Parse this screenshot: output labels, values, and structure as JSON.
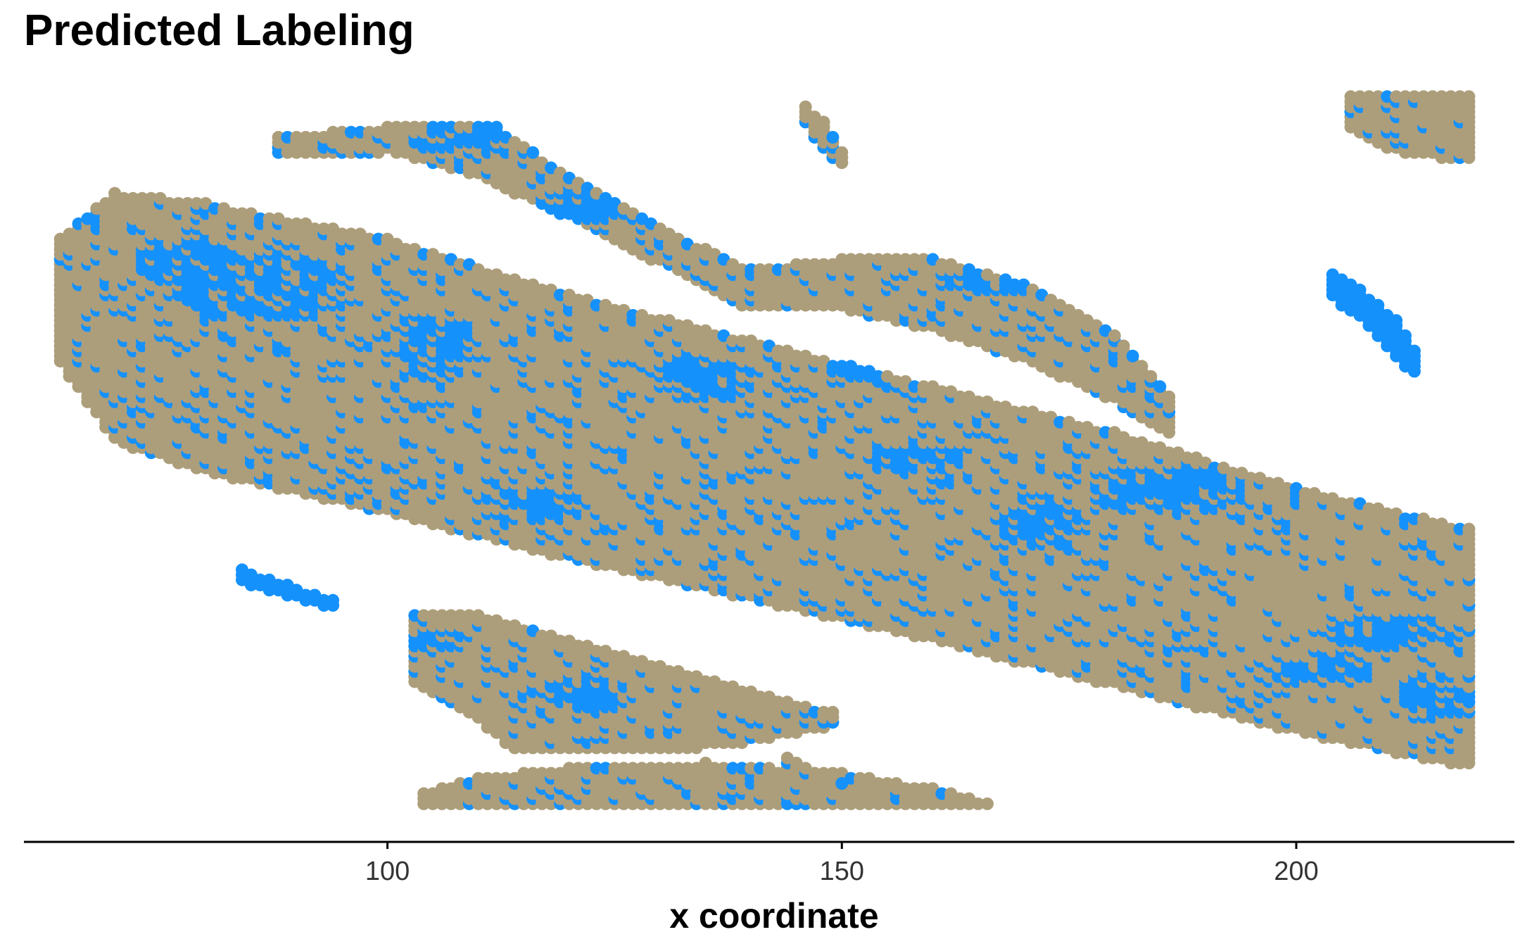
{
  "chart_data": {
    "type": "scatter",
    "title": "Predicted Labeling",
    "xlabel": "x coordinate",
    "ylabel": "",
    "xlim": [
      60,
      224
    ],
    "ylim": [
      -5,
      140
    ],
    "x_ticks": [
      100,
      150,
      200
    ],
    "y_axis_shown": false,
    "grid": false,
    "legend": "none",
    "point_spacing": 1,
    "colors": {
      "class_a": "#ad9e7b",
      "class_b": "#1591fc",
      "axis": "#000000"
    },
    "series": [
      {
        "name": "",
        "color": "#ad9e7b",
        "regions": [
          {
            "kind": "band",
            "upper": [
              [
                64,
                111
              ],
              [
                70,
                120
              ],
              [
                80,
                118
              ],
              [
                100,
                111
              ],
              [
                120,
                100
              ],
              [
                140,
                91
              ],
              [
                160,
                82
              ],
              [
                180,
                73
              ],
              [
                200,
                62
              ],
              [
                219,
                54
              ]
            ],
            "lower": [
              [
                64,
                87
              ],
              [
                70,
                72
              ],
              [
                80,
                66
              ],
              [
                100,
                58
              ],
              [
                120,
                49
              ],
              [
                140,
                41
              ],
              [
                160,
                33
              ],
              [
                180,
                24
              ],
              [
                200,
                15
              ],
              [
                219,
                8
              ]
            ]
          },
          {
            "kind": "band",
            "upper": [
              [
                88,
                131
              ],
              [
                100,
                133
              ],
              [
                112,
                133
              ],
              [
                120,
                123
              ],
              [
                130,
                113
              ],
              [
                140,
                105
              ],
              [
                150,
                107
              ],
              [
                160,
                107
              ],
              [
                170,
                102
              ],
              [
                180,
                92
              ],
              [
                186,
                80
              ]
            ],
            "lower": [
              [
                88,
                128
              ],
              [
                100,
                129
              ],
              [
                110,
                124
              ],
              [
                120,
                116
              ],
              [
                130,
                107
              ],
              [
                140,
                98
              ],
              [
                150,
                98
              ],
              [
                160,
                94
              ],
              [
                170,
                88
              ],
              [
                180,
                80
              ],
              [
                186,
                73
              ]
            ]
          },
          {
            "kind": "band",
            "upper": [
              [
                103,
                37
              ],
              [
                110,
                37
              ],
              [
                120,
                32
              ],
              [
                130,
                27
              ],
              [
                140,
                22
              ],
              [
                149,
                18
              ]
            ],
            "lower": [
              [
                103,
                24
              ],
              [
                110,
                17
              ],
              [
                114,
                11
              ],
              [
                120,
                11
              ],
              [
                130,
                11
              ],
              [
                140,
                13
              ],
              [
                149,
                16
              ]
            ]
          },
          {
            "kind": "band",
            "upper": [
              [
                104,
                2
              ],
              [
                110,
                5
              ],
              [
                120,
                7
              ],
              [
                135,
                8
              ],
              [
                150,
                6
              ],
              [
                160,
                3
              ],
              [
                166,
                0
              ]
            ],
            "lower": [
              [
                104,
                0
              ],
              [
                110,
                0
              ],
              [
                120,
                0
              ],
              [
                140,
                0
              ],
              [
                160,
                0
              ],
              [
                166,
                0
              ]
            ]
          },
          {
            "kind": "band",
            "upper": [
              [
                146,
                137
              ],
              [
                148,
                134
              ],
              [
                150,
                128
              ]
            ],
            "lower": [
              [
                146,
                134
              ],
              [
                148,
                129
              ],
              [
                150,
                126
              ]
            ]
          },
          {
            "kind": "band",
            "upper": [
              [
                206,
                139
              ],
              [
                219,
                139
              ]
            ],
            "lower": [
              [
                206,
                133
              ],
              [
                211,
                129
              ],
              [
                219,
                127
              ]
            ]
          },
          {
            "kind": "band",
            "upper": [
              [
                144,
                9
              ],
              [
                150,
                4
              ]
            ],
            "lower": [
              [
                143,
                7
              ],
              [
                150,
                2
              ]
            ]
          }
        ]
      },
      {
        "name": "",
        "color": "#1591fc",
        "regions": [
          {
            "kind": "blob",
            "center": [
              86,
              102
            ],
            "radius": [
              11,
              7
            ]
          },
          {
            "kind": "blob",
            "center": [
              78,
              107
            ],
            "radius": [
              6,
              5
            ]
          },
          {
            "kind": "blob",
            "center": [
              105,
              90
            ],
            "radius": [
              6,
              7
            ]
          },
          {
            "kind": "blob",
            "center": [
              116,
              59
            ],
            "radius": [
              6,
              4
            ]
          },
          {
            "kind": "blob",
            "center": [
              135,
              84
            ],
            "radius": [
              6,
              5
            ]
          },
          {
            "kind": "blob",
            "center": [
              152,
              86
            ],
            "radius": [
              4,
              3
            ]
          },
          {
            "kind": "blob",
            "center": [
              158,
              68
            ],
            "radius": [
              6,
              3
            ]
          },
          {
            "kind": "blob",
            "center": [
              172,
              56
            ],
            "radius": [
              5,
              6
            ]
          },
          {
            "kind": "blob",
            "center": [
              186,
              62
            ],
            "radius": [
              9,
              5
            ]
          },
          {
            "kind": "blob",
            "center": [
              211,
              34
            ],
            "radius": [
              8,
              4
            ]
          },
          {
            "kind": "blob",
            "center": [
              216,
              22
            ],
            "radius": [
              5,
              5
            ]
          },
          {
            "kind": "blob",
            "center": [
              203,
              27
            ],
            "radius": [
              6,
              4
            ]
          },
          {
            "kind": "blob",
            "center": [
              108,
              131
            ],
            "radius": [
              6,
              3
            ]
          },
          {
            "kind": "blob",
            "center": [
              125,
              118
            ],
            "radius": [
              9,
              4
            ]
          },
          {
            "kind": "blob",
            "center": [
              168,
              103
            ],
            "radius": [
              8,
              3
            ]
          },
          {
            "kind": "blob",
            "center": [
              106,
              32
            ],
            "radius": [
              4,
              3
            ]
          },
          {
            "kind": "blob",
            "center": [
              122,
              22
            ],
            "radius": [
              5,
              4
            ]
          },
          {
            "kind": "band",
            "upper": [
              [
                204,
                104
              ],
              [
                207,
                101
              ],
              [
                211,
                95
              ],
              [
                213,
                89
              ]
            ],
            "lower": [
              [
                204,
                100
              ],
              [
                207,
                96
              ],
              [
                210,
                90
              ],
              [
                213,
                85
              ]
            ]
          },
          {
            "kind": "band",
            "upper": [
              [
                84,
                46
              ],
              [
                94,
                40
              ]
            ],
            "lower": [
              [
                83,
                45
              ],
              [
                94,
                39
              ]
            ]
          },
          {
            "kind": "scatter",
            "density": 0.14,
            "within_series": 0
          }
        ]
      }
    ]
  }
}
